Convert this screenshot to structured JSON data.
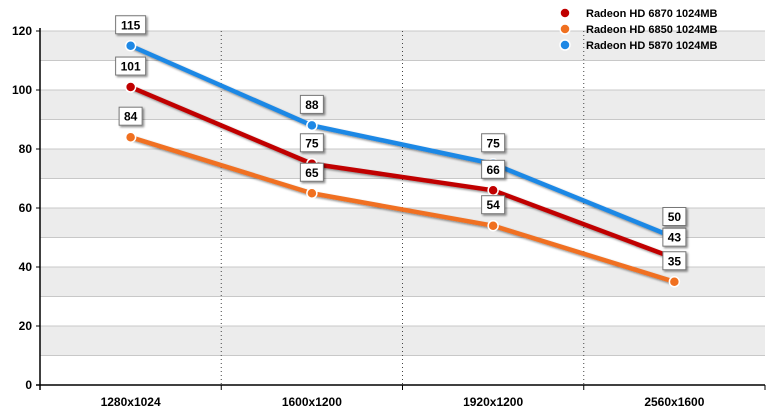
{
  "chart_data": {
    "type": "line",
    "categories": [
      "1280x1024",
      "1600x1200",
      "1920x1200",
      "2560x1600"
    ],
    "series": [
      {
        "name": "Radeon HD 6870 1024MB",
        "values": [
          101,
          75,
          66,
          43
        ],
        "color": "#c00000"
      },
      {
        "name": "Radeon HD 6850 1024MB",
        "values": [
          84,
          65,
          54,
          35
        ],
        "color": "#f07020"
      },
      {
        "name": "Radeon HD 5870 1024MB",
        "values": [
          115,
          88,
          75,
          50
        ],
        "color": "#1e88e5"
      }
    ],
    "ylim": [
      0,
      120
    ],
    "yticks": [
      0,
      20,
      40,
      60,
      80,
      100,
      120
    ],
    "grid": "alternating horizontal bands, dotted vertical category separators",
    "legend_position": "top-right",
    "data_labels": true
  }
}
